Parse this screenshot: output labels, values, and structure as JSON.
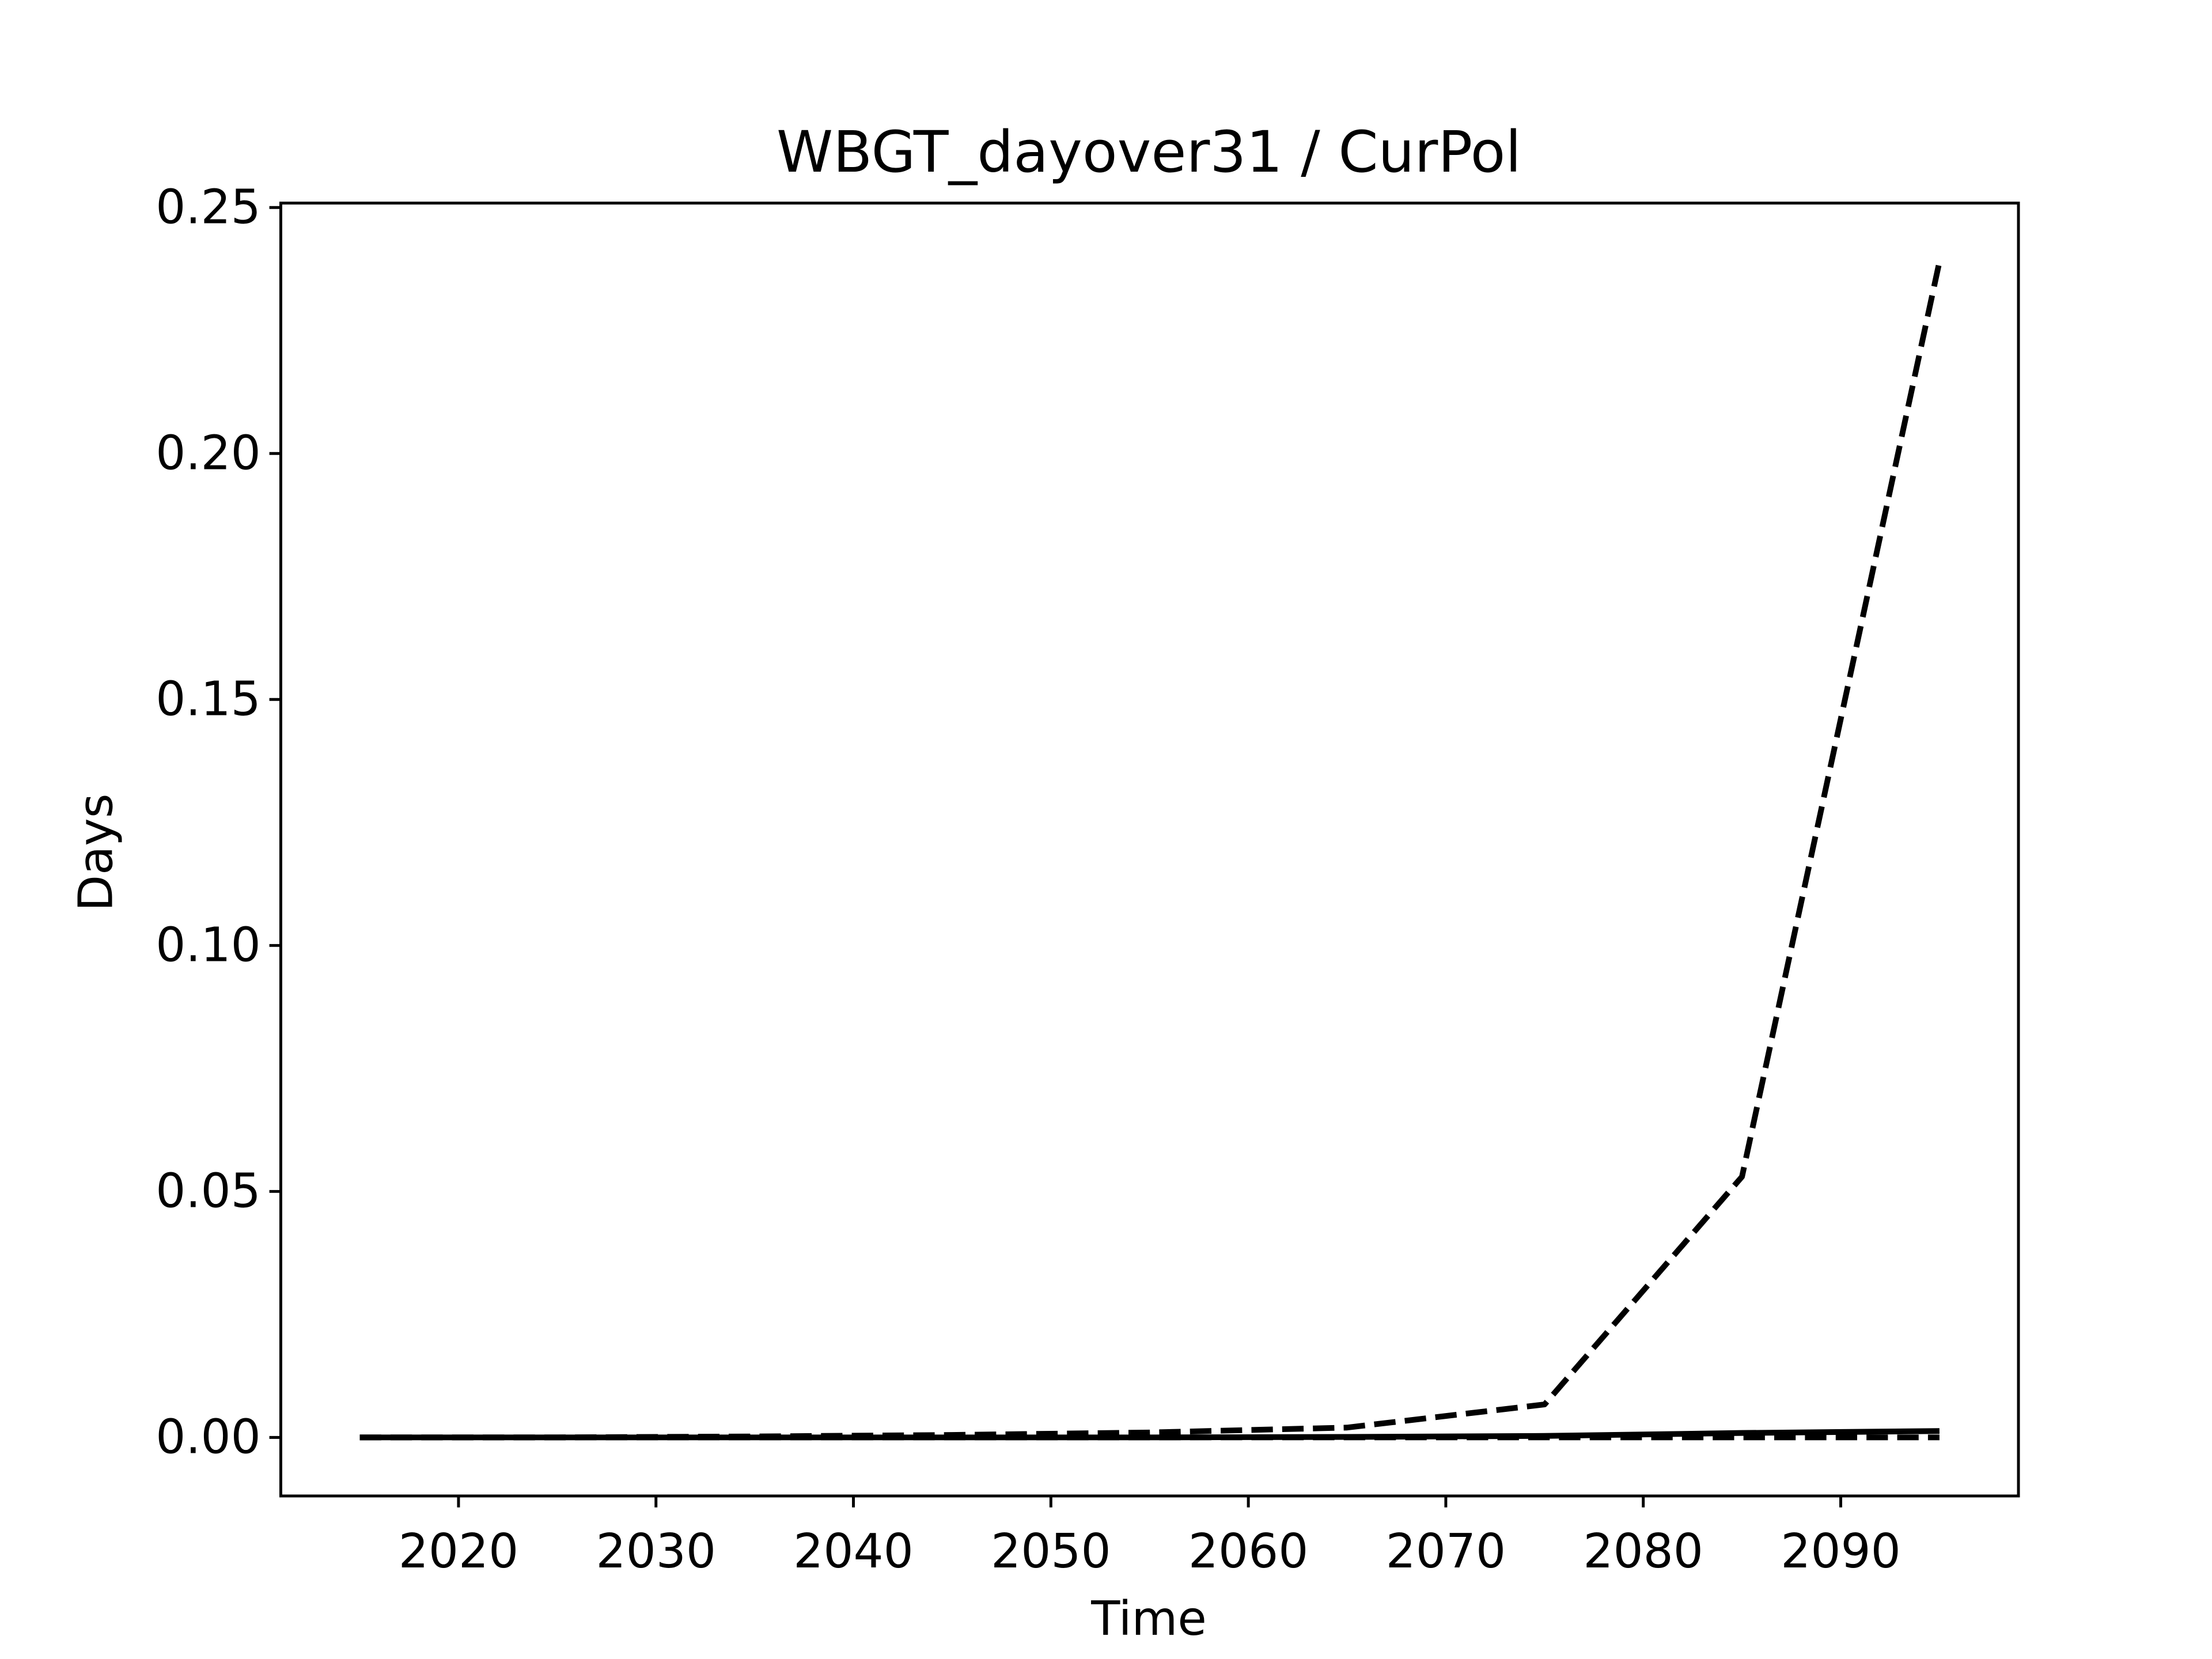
{
  "chart_data": {
    "type": "line",
    "title": "WBGT_dayover31 / CurPol",
    "xlabel": "Time",
    "ylabel": "Days",
    "x": [
      2015,
      2025,
      2035,
      2045,
      2055,
      2065,
      2075,
      2085,
      2095
    ],
    "series": [
      {
        "color": "#000000",
        "linestyle": "dashed",
        "values": [
          0,
          0,
          0.0002,
          0.0005,
          0.001,
          0.002,
          0.0067,
          0.053,
          0.239
        ]
      },
      {
        "color": "#000000",
        "linestyle": "solid",
        "values": [
          0,
          0,
          0,
          0,
          0,
          0.0001,
          0.0003,
          0.0009,
          0.0013
        ]
      },
      {
        "color": "#000000",
        "linestyle": "dashed",
        "values": [
          0,
          0,
          0,
          0,
          0,
          0,
          0,
          0,
          0
        ]
      }
    ],
    "xlim": [
      2011,
      2099
    ],
    "xticks": [
      2020,
      2030,
      2040,
      2050,
      2060,
      2070,
      2080,
      2090
    ],
    "ylim": [
      -0.0119,
      0.2509
    ],
    "yticks": [
      {
        "value": 0,
        "label": "0.00"
      },
      {
        "value": 0.05,
        "label": "0.05"
      },
      {
        "value": 0.1,
        "label": "0.10"
      },
      {
        "value": 0.15,
        "label": "0.15"
      },
      {
        "value": 0.2,
        "label": "0.20"
      },
      {
        "value": 0.25,
        "label": "0.25"
      }
    ],
    "grid": false
  }
}
